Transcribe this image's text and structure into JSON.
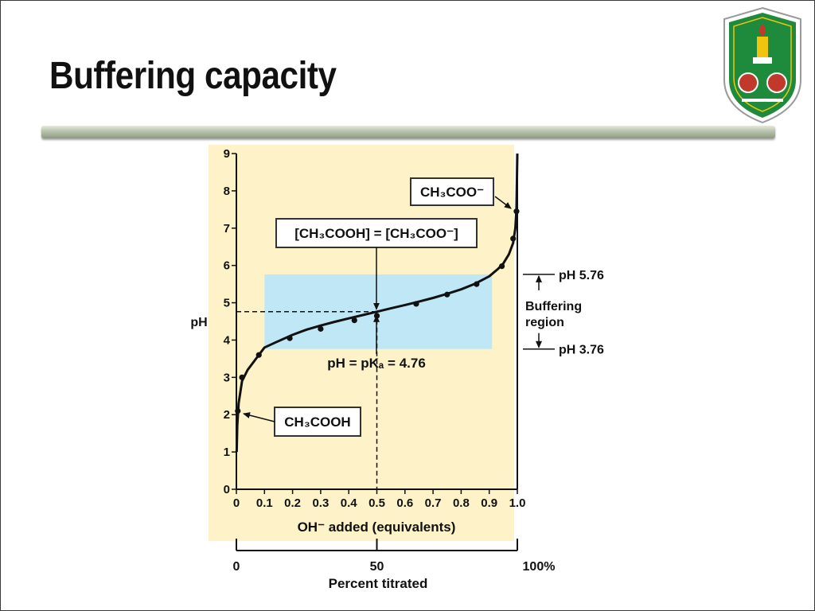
{
  "slide": {
    "title": "Buffering capacity",
    "logo": {
      "icon": "university-crest-icon",
      "colors": [
        "#1e8a3c",
        "#c0392b",
        "#f1c40f"
      ]
    }
  },
  "chart_data": {
    "type": "line",
    "title": "",
    "xlabel": "OH⁻ added (equivalents)",
    "ylabel": "pH",
    "xlim": [
      0,
      1.0
    ],
    "ylim": [
      0,
      9
    ],
    "x_ticks": [
      "0",
      "0.1",
      "0.2",
      "0.3",
      "0.4",
      "0.5",
      "0.6",
      "0.7",
      "0.8",
      "0.9",
      "1.0"
    ],
    "y_ticks": [
      "0",
      "1",
      "2",
      "3",
      "4",
      "5",
      "6",
      "7",
      "8",
      "9"
    ],
    "secondary_axis": {
      "label": "Percent titrated",
      "ticks": [
        "0",
        "50",
        "100%"
      ]
    },
    "grid": false,
    "colors": {
      "plot_background": "#fdf2c8",
      "buffer_band": "#bfe7f6",
      "curve": "#111111"
    },
    "series": [
      {
        "curve": [
          [
            0.001,
            1.0
          ],
          [
            0.003,
            1.7
          ],
          [
            0.008,
            2.3
          ],
          [
            0.02,
            2.9
          ],
          [
            0.04,
            3.2
          ],
          [
            0.07,
            3.5
          ],
          [
            0.1,
            3.8
          ],
          [
            0.14,
            3.94
          ],
          [
            0.2,
            4.14
          ],
          [
            0.25,
            4.28
          ],
          [
            0.3,
            4.39
          ],
          [
            0.35,
            4.49
          ],
          [
            0.4,
            4.58
          ],
          [
            0.45,
            4.67
          ],
          [
            0.5,
            4.76
          ],
          [
            0.55,
            4.85
          ],
          [
            0.6,
            4.94
          ],
          [
            0.65,
            5.03
          ],
          [
            0.7,
            5.13
          ],
          [
            0.75,
            5.24
          ],
          [
            0.8,
            5.36
          ],
          [
            0.85,
            5.51
          ],
          [
            0.9,
            5.71
          ],
          [
            0.93,
            5.9
          ],
          [
            0.95,
            6.05
          ],
          [
            0.97,
            6.3
          ],
          [
            0.985,
            6.6
          ],
          [
            0.993,
            7.0
          ],
          [
            0.997,
            7.5
          ],
          [
            1.0,
            9.0
          ]
        ],
        "points": [
          [
            0.005,
            2.1
          ],
          [
            0.02,
            3.0
          ],
          [
            0.08,
            3.6
          ],
          [
            0.19,
            4.05
          ],
          [
            0.3,
            4.3
          ],
          [
            0.42,
            4.53
          ],
          [
            0.5,
            4.65
          ],
          [
            0.64,
            4.97
          ],
          [
            0.75,
            5.22
          ],
          [
            0.855,
            5.5
          ],
          [
            0.945,
            5.98
          ],
          [
            0.985,
            6.72
          ],
          [
            0.997,
            7.45
          ]
        ]
      }
    ],
    "buffer_region": {
      "x": [
        0.1,
        0.91
      ],
      "y": [
        3.76,
        5.76
      ]
    },
    "pka_reference": {
      "x": 0.5,
      "y": 4.76
    },
    "annotations": {
      "top_species": "CH₃COO⁻",
      "bottom_species": "CH₃COOH",
      "equality": "[CH₃COOH] = [CH₃COO⁻]",
      "pka_label": "pH = pKₐ = 4.76",
      "upper_limit": "pH 5.76",
      "lower_limit": "pH 3.76",
      "region_line1": "Buffering",
      "region_line2": "region"
    }
  }
}
